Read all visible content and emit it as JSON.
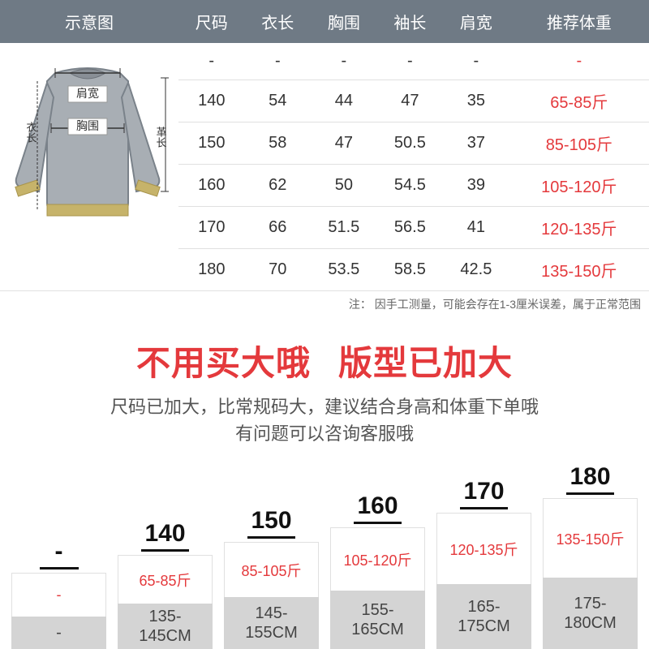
{
  "table": {
    "headers": [
      "示意图",
      "尺码",
      "衣长",
      "胸围",
      "袖长",
      "肩宽",
      "推荐体重"
    ],
    "rows": [
      [
        "-",
        "-",
        "-",
        "-",
        "-",
        "-"
      ],
      [
        "140",
        "54",
        "44",
        "47",
        "35",
        "65-85斤"
      ],
      [
        "150",
        "58",
        "47",
        "50.5",
        "37",
        "85-105斤"
      ],
      [
        "160",
        "62",
        "50",
        "54.5",
        "39",
        "105-120斤"
      ],
      [
        "170",
        "66",
        "51.5",
        "56.5",
        "41",
        "120-135斤"
      ],
      [
        "180",
        "70",
        "53.5",
        "58.5",
        "42.5",
        "135-150斤"
      ]
    ],
    "footnote": "注：  因手工测量，可能会存在1-3厘米误差，属于正常范围",
    "diagram_labels": {
      "shoulder": "肩宽",
      "chest": "胸围",
      "length_left": "衣长",
      "length_right": "革长"
    }
  },
  "heading": {
    "part1": "不用买大哦",
    "part2": "版型已加大"
  },
  "sub_note_line1": "尺码已加大，比常规码大，建议结合身高和体重下单哦",
  "sub_note_line2": "有问题可以咨询客服哦",
  "bars": [
    {
      "size": "-",
      "weight": "-",
      "height": "-",
      "upper_h": 54,
      "lower_h": 40
    },
    {
      "size": "140",
      "weight": "65-85斤",
      "height": "135-145CM",
      "upper_h": 60,
      "lower_h": 56
    },
    {
      "size": "150",
      "weight": "85-105斤",
      "height": "145-155CM",
      "upper_h": 68,
      "lower_h": 64
    },
    {
      "size": "160",
      "weight": "105-120斤",
      "height": "155-165CM",
      "upper_h": 78,
      "lower_h": 72
    },
    {
      "size": "170",
      "weight": "120-135斤",
      "height": "165-175CM",
      "upper_h": 88,
      "lower_h": 80
    },
    {
      "size": "180",
      "weight": "135-150斤",
      "height": "175-180CM",
      "upper_h": 98,
      "lower_h": 88
    }
  ],
  "colors": {
    "header_bg": "#6f7a85",
    "accent_red": "#e4393c",
    "bar_gray": "#d4d4d4",
    "border": "#e0e0e0",
    "text": "#333333"
  }
}
